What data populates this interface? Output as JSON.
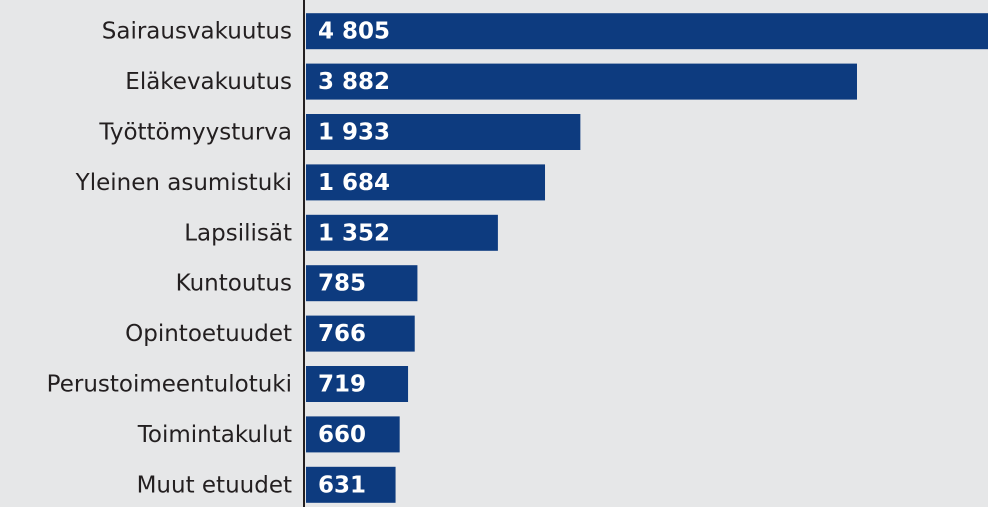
{
  "chart_data": {
    "type": "bar",
    "orientation": "horizontal",
    "categories": [
      "Sairausvakuutus",
      "Eläkevakuutus",
      "Työttömyysturva",
      "Yleinen asumistuki",
      "Lapsilisät",
      "Kuntoutus",
      "Opintoetuudet",
      "Perustoimeentulotuki",
      "Toimintakulut",
      "Muut etuudet"
    ],
    "values": [
      4805,
      3882,
      1933,
      1684,
      1352,
      785,
      766,
      719,
      660,
      631
    ],
    "value_labels": [
      "4 805",
      "3 882",
      "1 933",
      "1 684",
      "1 352",
      "785",
      "766",
      "719",
      "660",
      "631"
    ],
    "color": "#0d3b7f"
  }
}
